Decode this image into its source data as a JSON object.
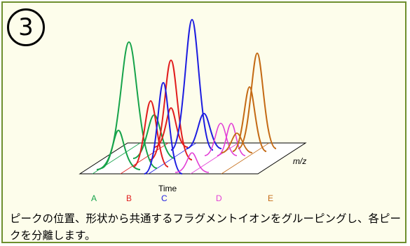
{
  "step_number": "3",
  "axis_labels": {
    "time": "Time",
    "mz": "m/z"
  },
  "components": [
    {
      "label": "A",
      "color": "#16a34a"
    },
    {
      "label": "B",
      "color": "#e11d1d"
    },
    {
      "label": "C",
      "color": "#1d1de0"
    },
    {
      "label": "D",
      "color": "#e23fd6"
    },
    {
      "label": "E",
      "color": "#c46a14"
    }
  ],
  "caption": "ピークの位置、形状から共通するフラグメントイオンをグルーピングし、各ピークを分離します。"
}
